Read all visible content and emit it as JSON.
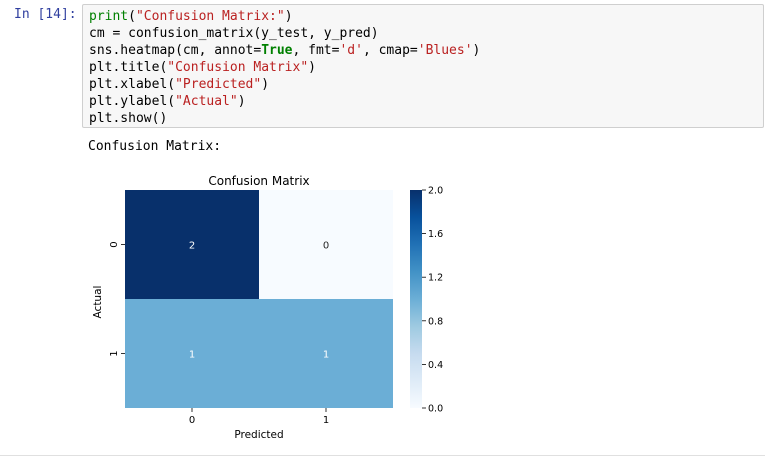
{
  "cell": {
    "prompt": "In [14]:",
    "code_lines": [
      [
        {
          "t": "print",
          "c": "kw"
        },
        {
          "t": "(",
          "c": ""
        },
        {
          "t": "\"Confusion Matrix:\"",
          "c": "str"
        },
        {
          "t": ")",
          "c": ""
        }
      ],
      [
        {
          "t": "cm = confusion_matrix(y_test, y_pred)",
          "c": ""
        }
      ],
      [
        {
          "t": "sns.heatmap(cm, annot=",
          "c": ""
        },
        {
          "t": "True",
          "c": "kwb"
        },
        {
          "t": ", fmt=",
          "c": ""
        },
        {
          "t": "'d'",
          "c": "str"
        },
        {
          "t": ", cmap=",
          "c": ""
        },
        {
          "t": "'Blues'",
          "c": "str"
        },
        {
          "t": ")",
          "c": ""
        }
      ],
      [
        {
          "t": "plt.title(",
          "c": ""
        },
        {
          "t": "\"Confusion Matrix\"",
          "c": "str"
        },
        {
          "t": ")",
          "c": ""
        }
      ],
      [
        {
          "t": "plt.xlabel(",
          "c": ""
        },
        {
          "t": "\"Predicted\"",
          "c": "str"
        },
        {
          "t": ")",
          "c": ""
        }
      ],
      [
        {
          "t": "plt.ylabel(",
          "c": ""
        },
        {
          "t": "\"Actual\"",
          "c": "str"
        },
        {
          "t": ")",
          "c": ""
        }
      ],
      [
        {
          "t": "plt.show()",
          "c": ""
        }
      ]
    ]
  },
  "output": {
    "text": "Confusion Matrix:"
  },
  "chart_data": {
    "type": "heatmap",
    "title": "Confusion Matrix",
    "xlabel": "Predicted",
    "ylabel": "Actual",
    "x_categories": [
      "0",
      "1"
    ],
    "y_categories": [
      "0",
      "1"
    ],
    "values": [
      [
        2,
        0
      ],
      [
        1,
        1
      ]
    ],
    "cmap": "Blues",
    "colors": {
      "dark": "#08306b",
      "mid": "#6baed6",
      "light": "#f7fbff"
    },
    "colorbar": {
      "range": [
        0,
        2
      ],
      "ticks": [
        0.0,
        0.4,
        0.8,
        1.2,
        1.6,
        2.0
      ],
      "tick_labels": [
        "0.0",
        "0.4",
        "0.8",
        "1.2",
        "1.6",
        "2.0"
      ]
    }
  }
}
